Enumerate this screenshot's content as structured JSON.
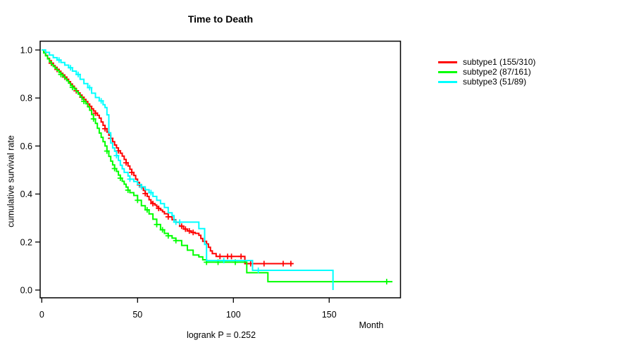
{
  "chart_data": {
    "type": "line",
    "subtype": "kaplan-meier-step",
    "title": "Time to Death",
    "xlabel": "Month",
    "ylabel": "cumulative survival rate",
    "annotation": "logrank P = 0.252",
    "x_ticks": [
      0,
      50,
      100,
      150
    ],
    "y_ticks": [
      0.0,
      0.2,
      0.4,
      0.6,
      0.8,
      1.0
    ],
    "xlim": [
      0,
      187
    ],
    "ylim": [
      0,
      1
    ],
    "grid": false,
    "legend_position": "right-outside",
    "axis_color": "#000000",
    "background_color": "#ffffff",
    "series": [
      {
        "name": "subtype1",
        "label": "subtype1 (155/310)",
        "events": "155/310",
        "color": "#ff0000",
        "end_t": 131,
        "steps": [
          [
            0,
            1.0
          ],
          [
            1,
            0.99
          ],
          [
            2,
            0.977
          ],
          [
            3,
            0.965
          ],
          [
            4,
            0.955
          ],
          [
            5,
            0.945
          ],
          [
            6,
            0.935
          ],
          [
            7,
            0.927
          ],
          [
            8,
            0.919
          ],
          [
            9,
            0.911
          ],
          [
            10,
            0.903
          ],
          [
            11,
            0.895
          ],
          [
            12,
            0.887
          ],
          [
            13,
            0.878
          ],
          [
            14,
            0.868
          ],
          [
            15,
            0.858
          ],
          [
            16,
            0.849
          ],
          [
            17,
            0.84
          ],
          [
            18,
            0.83
          ],
          [
            19,
            0.821
          ],
          [
            20,
            0.812
          ],
          [
            21,
            0.803
          ],
          [
            22,
            0.794
          ],
          [
            23,
            0.785
          ],
          [
            24,
            0.775
          ],
          [
            25,
            0.765
          ],
          [
            26,
            0.755
          ],
          [
            27,
            0.746
          ],
          [
            28,
            0.737
          ],
          [
            29,
            0.728
          ],
          [
            30,
            0.716
          ],
          [
            31,
            0.7
          ],
          [
            32,
            0.686
          ],
          [
            33,
            0.672
          ],
          [
            34,
            0.658
          ],
          [
            35,
            0.645
          ],
          [
            36,
            0.632
          ],
          [
            37,
            0.618
          ],
          [
            38,
            0.604
          ],
          [
            39,
            0.592
          ],
          [
            40,
            0.58
          ],
          [
            41,
            0.57
          ],
          [
            42,
            0.558
          ],
          [
            43,
            0.544
          ],
          [
            44,
            0.53
          ],
          [
            45,
            0.517
          ],
          [
            46,
            0.503
          ],
          [
            47,
            0.49
          ],
          [
            48,
            0.477
          ],
          [
            49,
            0.462
          ],
          [
            50,
            0.448
          ],
          [
            51,
            0.438
          ],
          [
            52,
            0.427
          ],
          [
            53,
            0.415
          ],
          [
            54,
            0.402
          ],
          [
            55,
            0.39
          ],
          [
            56,
            0.376
          ],
          [
            57,
            0.366
          ],
          [
            58,
            0.36
          ],
          [
            59,
            0.354
          ],
          [
            60,
            0.347
          ],
          [
            61,
            0.34
          ],
          [
            62,
            0.333
          ],
          [
            63,
            0.326
          ],
          [
            64,
            0.318
          ],
          [
            66,
            0.305
          ],
          [
            68,
            0.293
          ],
          [
            70,
            0.282
          ],
          [
            72,
            0.266
          ],
          [
            74,
            0.254
          ],
          [
            76,
            0.246
          ],
          [
            78,
            0.24
          ],
          [
            80,
            0.236
          ],
          [
            82,
            0.228
          ],
          [
            83,
            0.215
          ],
          [
            84,
            0.203
          ],
          [
            86,
            0.192
          ],
          [
            87,
            0.178
          ],
          [
            88,
            0.163
          ],
          [
            89,
            0.152
          ],
          [
            91,
            0.14
          ],
          [
            106,
            0.11
          ]
        ],
        "censor_t": [
          5,
          8,
          12,
          18,
          21,
          25,
          28,
          33,
          36,
          40,
          44,
          47,
          51,
          54,
          58,
          61,
          66,
          73,
          75,
          77,
          79,
          93,
          97,
          99,
          104,
          109,
          116,
          126,
          130
        ]
      },
      {
        "name": "subtype2",
        "label": "subtype2 (87/161)",
        "events": "87/161",
        "color": "#00ff00",
        "end_t": 183,
        "steps": [
          [
            0,
            1.0
          ],
          [
            1,
            0.988
          ],
          [
            2,
            0.976
          ],
          [
            3,
            0.963
          ],
          [
            4,
            0.951
          ],
          [
            5,
            0.939
          ],
          [
            6,
            0.931
          ],
          [
            7,
            0.923
          ],
          [
            8,
            0.915
          ],
          [
            9,
            0.906
          ],
          [
            10,
            0.898
          ],
          [
            11,
            0.89
          ],
          [
            12,
            0.881
          ],
          [
            13,
            0.872
          ],
          [
            14,
            0.862
          ],
          [
            15,
            0.852
          ],
          [
            16,
            0.844
          ],
          [
            17,
            0.837
          ],
          [
            18,
            0.826
          ],
          [
            19,
            0.816
          ],
          [
            20,
            0.806
          ],
          [
            21,
            0.796
          ],
          [
            22,
            0.786
          ],
          [
            23,
            0.776
          ],
          [
            24,
            0.763
          ],
          [
            25,
            0.749
          ],
          [
            26,
            0.731
          ],
          [
            27,
            0.713
          ],
          [
            28,
            0.694
          ],
          [
            29,
            0.674
          ],
          [
            30,
            0.654
          ],
          [
            31,
            0.636
          ],
          [
            32,
            0.618
          ],
          [
            33,
            0.6
          ],
          [
            34,
            0.579
          ],
          [
            35,
            0.557
          ],
          [
            36,
            0.537
          ],
          [
            37,
            0.521
          ],
          [
            38,
            0.506
          ],
          [
            39,
            0.494
          ],
          [
            40,
            0.479
          ],
          [
            41,
            0.466
          ],
          [
            42,
            0.453
          ],
          [
            43,
            0.441
          ],
          [
            44,
            0.429
          ],
          [
            45,
            0.416
          ],
          [
            46,
            0.406
          ],
          [
            48,
            0.394
          ],
          [
            50,
            0.374
          ],
          [
            52,
            0.351
          ],
          [
            54,
            0.334
          ],
          [
            56,
            0.317
          ],
          [
            58,
            0.295
          ],
          [
            60,
            0.273
          ],
          [
            62,
            0.251
          ],
          [
            64,
            0.236
          ],
          [
            66,
            0.226
          ],
          [
            68,
            0.216
          ],
          [
            70,
            0.206
          ],
          [
            73,
            0.186
          ],
          [
            76,
            0.166
          ],
          [
            79,
            0.146
          ],
          [
            82,
            0.138
          ],
          [
            84,
            0.126
          ],
          [
            86,
            0.116
          ],
          [
            107,
            0.072
          ],
          [
            118,
            0.035
          ]
        ],
        "censor_t": [
          10,
          16,
          22,
          27,
          34,
          38,
          41,
          45,
          50,
          55,
          60,
          63,
          66,
          70,
          86,
          92,
          101,
          180
        ]
      },
      {
        "name": "subtype3",
        "label": "subtype3 (51/89)",
        "events": "51/89",
        "color": "#00ffff",
        "end_t": 152,
        "steps": [
          [
            0,
            1.0
          ],
          [
            2,
            0.99
          ],
          [
            4,
            0.979
          ],
          [
            6,
            0.968
          ],
          [
            8,
            0.958
          ],
          [
            10,
            0.948
          ],
          [
            12,
            0.937
          ],
          [
            14,
            0.926
          ],
          [
            16,
            0.912
          ],
          [
            18,
            0.898
          ],
          [
            20,
            0.878
          ],
          [
            22,
            0.86
          ],
          [
            24,
            0.843
          ],
          [
            26,
            0.82
          ],
          [
            28,
            0.802
          ],
          [
            30,
            0.788
          ],
          [
            32,
            0.772
          ],
          [
            33,
            0.76
          ],
          [
            34,
            0.73
          ],
          [
            35,
            0.655
          ],
          [
            36,
            0.612
          ],
          [
            37,
            0.592
          ],
          [
            38,
            0.578
          ],
          [
            39,
            0.56
          ],
          [
            40,
            0.54
          ],
          [
            41,
            0.52
          ],
          [
            42,
            0.505
          ],
          [
            43,
            0.49
          ],
          [
            45,
            0.475
          ],
          [
            46,
            0.462
          ],
          [
            48,
            0.452
          ],
          [
            50,
            0.44
          ],
          [
            52,
            0.43
          ],
          [
            54,
            0.418
          ],
          [
            56,
            0.406
          ],
          [
            58,
            0.39
          ],
          [
            60,
            0.374
          ],
          [
            62,
            0.36
          ],
          [
            64,
            0.344
          ],
          [
            66,
            0.322
          ],
          [
            68,
            0.31
          ],
          [
            69,
            0.283
          ],
          [
            82,
            0.256
          ],
          [
            85,
            0.19
          ],
          [
            86,
            0.123
          ],
          [
            110,
            0.082
          ],
          [
            152,
            0.0
          ]
        ],
        "censor_t": [
          9,
          15,
          19,
          25,
          31,
          39,
          46,
          52,
          57,
          70,
          72,
          95,
          113
        ]
      }
    ]
  }
}
